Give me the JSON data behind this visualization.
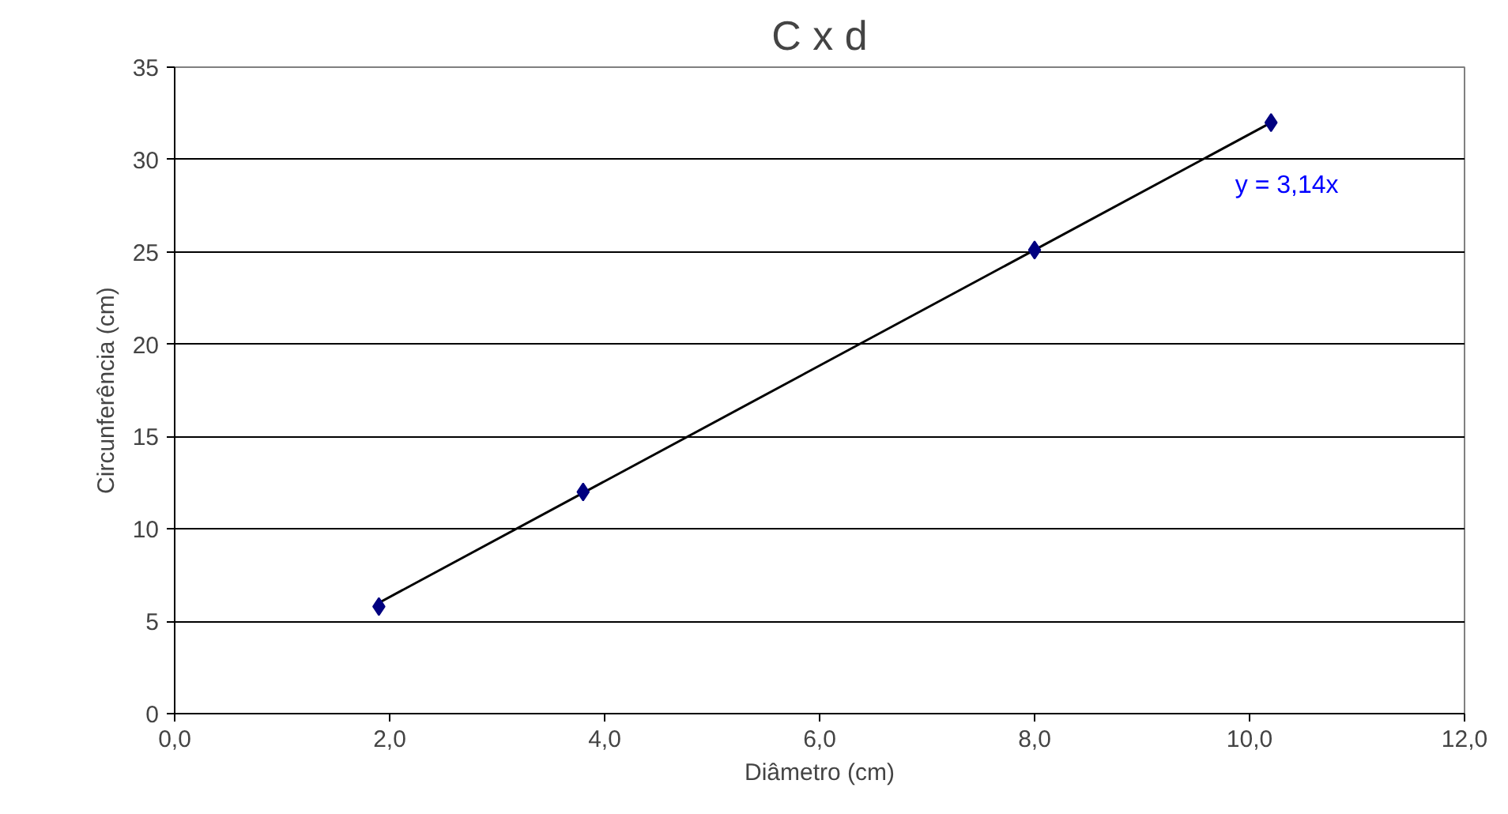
{
  "chart_data": {
    "type": "scatter",
    "title": "C x d",
    "xlabel": "Diâmetro (cm)",
    "ylabel": "Circunferência (cm)",
    "x": [
      1.9,
      3.8,
      8.0,
      10.2
    ],
    "series": [
      {
        "color": "#000080",
        "values": [
          5.8,
          12.0,
          25.1,
          32.0
        ],
        "marker": "diamond"
      },
      {
        "type": "line",
        "color": "#000000",
        "x": [
          1.9,
          10.2
        ],
        "values": [
          6.0,
          32.0
        ],
        "line_style": "solid"
      }
    ],
    "annotations": [
      "y = 3,14x"
    ],
    "xlim": [
      0,
      12
    ],
    "ylim": [
      0,
      35
    ],
    "xticks": [
      {
        "value": 0,
        "label": "0,0"
      },
      {
        "value": 2,
        "label": "2,0"
      },
      {
        "value": 4,
        "label": "4,0"
      },
      {
        "value": 6,
        "label": "6,0"
      },
      {
        "value": 8,
        "label": "8,0"
      },
      {
        "value": 10,
        "label": "10,0"
      },
      {
        "value": 12,
        "label": "12,0"
      }
    ],
    "yticks": [
      0,
      5,
      10,
      15,
      20,
      25,
      30,
      35
    ],
    "grid": "y"
  }
}
